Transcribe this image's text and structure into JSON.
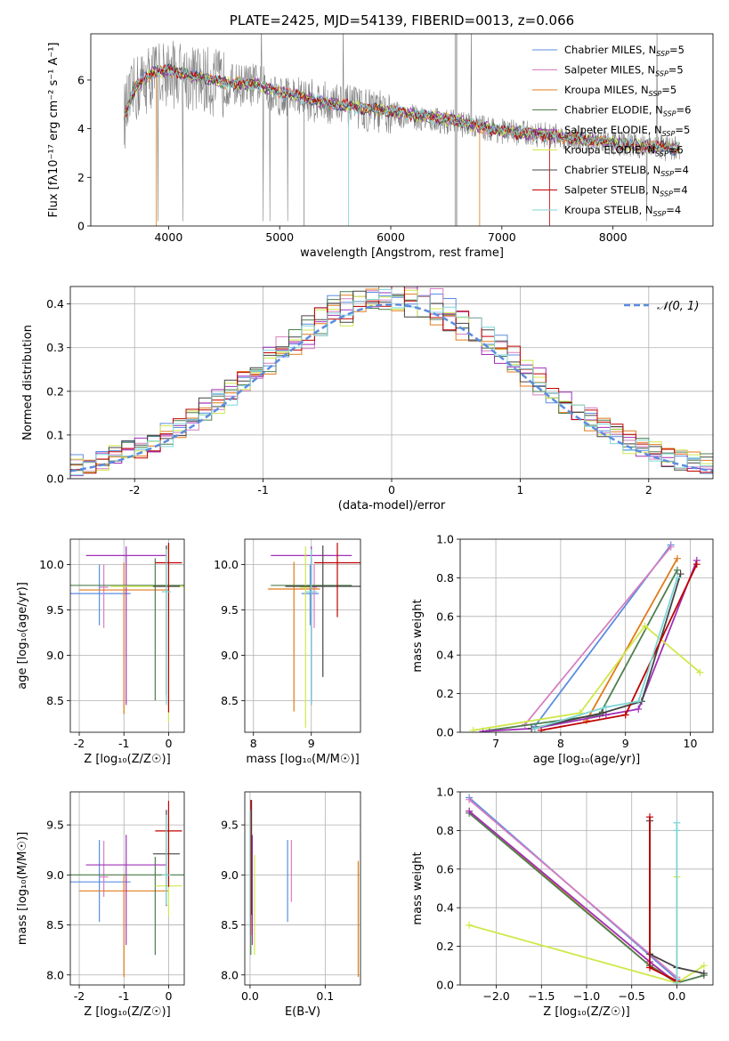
{
  "figure": {
    "width": 819,
    "height": 1170
  },
  "colors": {
    "Chabrier MILES": "#5b8de0",
    "Salpeter MILES": "#d67fbf",
    "Kroupa MILES": "#e07b1a",
    "Chabrier ELODIE": "#4f7f4f",
    "Salpeter ELODIE": "#a030b8",
    "Kroupa ELODIE": "#d0e84a",
    "Chabrier STELIB": "#444444",
    "Salpeter STELIB": "#c00000",
    "Kroupa STELIB": "#7fd6d6",
    "data": "#808080"
  },
  "chart_data": [
    {
      "id": "spectrum",
      "type": "line",
      "title": "PLATE=2425, MJD=54139, FIBERID=0013, z=0.066",
      "xlabel": "wavelength [Angstrom, rest frame]",
      "ylabel": "Flux [fλ10⁻¹⁷ erg cm⁻² s⁻¹ A⁻¹]",
      "xlim": [
        3300,
        8900
      ],
      "ylim": [
        0,
        7.9
      ],
      "xticks": [
        4000,
        5000,
        6000,
        7000,
        8000
      ],
      "yticks": [
        0,
        2,
        4,
        6
      ],
      "grid": false,
      "legend_position": "top-right",
      "legend": [
        "Chabrier MILES, N_SSP=5",
        "Salpeter MILES, N_SSP=5",
        "Kroupa MILES, N_SSP=5",
        "Chabrier ELODIE, N_SSP=6",
        "Salpeter ELODIE, N_SSP=5",
        "Kroupa ELODIE, N_SSP=6",
        "Chabrier STELIB, N_SSP=4",
        "Salpeter STELIB, N_SSP=4",
        "Kroupa STELIB, N_SSP=4"
      ],
      "model_continuum": {
        "x": [
          3600,
          3700,
          3850,
          4000,
          4200,
          4500,
          4800,
          5000,
          5500,
          6000,
          6500,
          7000,
          7500,
          8000,
          8500,
          8600
        ],
        "y": [
          4.5,
          5.7,
          6.3,
          6.4,
          6.2,
          5.9,
          5.8,
          5.5,
          5.0,
          4.7,
          4.4,
          3.9,
          3.7,
          3.4,
          3.2,
          3.2
        ]
      },
      "data_spectrum": {
        "x": [
          3600,
          3700,
          3850,
          4000,
          4200,
          4500,
          4800,
          5000,
          5500,
          6000,
          6500,
          7000,
          7500,
          8000,
          8500,
          8600
        ],
        "y": [
          4.5,
          5.6,
          6.2,
          6.3,
          6.1,
          5.8,
          5.8,
          5.4,
          5.0,
          4.6,
          4.3,
          3.9,
          3.7,
          3.4,
          3.2,
          3.2
        ],
        "noise": 0.9
      }
    },
    {
      "id": "residuals",
      "type": "line",
      "xlabel": "(data-model)/error",
      "ylabel": "Normed distribution",
      "xlim": [
        -2.5,
        2.5
      ],
      "ylim": [
        0,
        0.44
      ],
      "xticks": [
        -2,
        -1,
        0,
        1,
        2
      ],
      "yticks": [
        0.0,
        0.1,
        0.2,
        0.3,
        0.4
      ],
      "grid": true,
      "legend_position": "top-right",
      "legend": [
        "𝒩(0, 1)"
      ],
      "normal_curve": {
        "mu": 0,
        "sigma": 1
      }
    },
    {
      "id": "age-vs-Z",
      "type": "scatter",
      "xlabel": "Z [log₁₀(Z/Z☉)]",
      "ylabel": "age  [log₁₀(age/yr)]",
      "xlim": [
        -2.2,
        0.35
      ],
      "ylim": [
        8.15,
        10.28
      ],
      "xticks": [
        -2,
        -1,
        0
      ],
      "yticks": [
        8.5,
        9.0,
        9.5,
        10.0
      ],
      "grid": true,
      "points": [
        {
          "model": "Chabrier MILES",
          "x": -1.55,
          "y": 9.68,
          "xerr": 0.7,
          "yerr_lo": 0.35,
          "yerr_hi": 0.32
        },
        {
          "model": "Salpeter MILES",
          "x": -1.45,
          "y": 9.75,
          "xerr": 0.1,
          "yerr_lo": 0.45,
          "yerr_hi": 0.25
        },
        {
          "model": "Kroupa MILES",
          "x": -1.0,
          "y": 9.72,
          "xerr": 1.0,
          "yerr_lo": 1.37,
          "yerr_hi": 0.3
        },
        {
          "model": "Chabrier ELODIE",
          "x": -0.3,
          "y": 9.77,
          "xerr": 2.0,
          "yerr_lo": 1.27,
          "yerr_hi": 0.3
        },
        {
          "model": "Salpeter ELODIE",
          "x": -0.95,
          "y": 10.1,
          "xerr": 0.9,
          "yerr_lo": 1.65,
          "yerr_hi": 0.1
        },
        {
          "model": "Kroupa ELODIE",
          "x": 0.0,
          "y": 9.76,
          "xerr": 1.3,
          "yerr_lo": 1.5,
          "yerr_hi": 0.45
        },
        {
          "model": "Chabrier STELIB",
          "x": -0.05,
          "y": 9.76,
          "xerr": 0.3,
          "yerr_lo": 1.2,
          "yerr_hi": 0.45
        },
        {
          "model": "Salpeter STELIB",
          "x": 0.0,
          "y": 10.02,
          "xerr": 0.3,
          "yerr_lo": 1.65,
          "yerr_hi": 0.22
        },
        {
          "model": "Kroupa STELIB",
          "x": -0.05,
          "y": 9.7,
          "xerr": 0.1,
          "yerr_lo": 1.25,
          "yerr_hi": 0.47
        }
      ]
    },
    {
      "id": "age-vs-mass",
      "type": "scatter",
      "xlabel": "mass [log₁₀(M/M☉)]",
      "ylabel": "",
      "xlim": [
        7.85,
        9.85
      ],
      "ylim": [
        8.15,
        10.28
      ],
      "xticks": [
        8,
        9
      ],
      "yticks": [
        8.5,
        9.0,
        9.5,
        10.0
      ],
      "grid": true,
      "points": [
        {
          "model": "Chabrier MILES",
          "x": 8.98,
          "y": 9.68,
          "xerr": 0.15,
          "yerr_lo": 0.35,
          "yerr_hi": 0.32
        },
        {
          "model": "Salpeter MILES",
          "x": 9.05,
          "y": 9.75,
          "xerr": 0.05,
          "yerr_lo": 0.45,
          "yerr_hi": 0.25
        },
        {
          "model": "Kroupa MILES",
          "x": 8.7,
          "y": 9.73,
          "xerr": 0.45,
          "yerr_lo": 1.35,
          "yerr_hi": 0.3
        },
        {
          "model": "Chabrier ELODIE",
          "x": 9.0,
          "y": 9.77,
          "xerr": 0.7,
          "yerr_lo": 1.27,
          "yerr_hi": 0.3
        },
        {
          "model": "Salpeter ELODIE",
          "x": 9.0,
          "y": 10.1,
          "xerr": 0.7,
          "yerr_lo": 1.65,
          "yerr_hi": 0.1
        },
        {
          "model": "Kroupa ELODIE",
          "x": 8.9,
          "y": 9.75,
          "xerr": 0.1,
          "yerr_lo": 1.55,
          "yerr_hi": 0.45
        },
        {
          "model": "Chabrier STELIB",
          "x": 9.2,
          "y": 9.76,
          "xerr": 0.65,
          "yerr_lo": 1.0,
          "yerr_hi": 0.45
        },
        {
          "model": "Salpeter STELIB",
          "x": 9.45,
          "y": 10.02,
          "xerr": 0.4,
          "yerr_lo": 0.6,
          "yerr_hi": 0.22
        },
        {
          "model": "Kroupa STELIB",
          "x": 9.0,
          "y": 9.7,
          "xerr": 0.1,
          "yerr_lo": 1.25,
          "yerr_hi": 0.47
        }
      ]
    },
    {
      "id": "massweight-vs-age",
      "type": "line",
      "xlabel": "age  [log₁₀(age/yr)]",
      "ylabel": "mass weight",
      "xlim": [
        6.45,
        10.35
      ],
      "ylim": [
        0,
        1.0
      ],
      "xticks": [
        7,
        8,
        9,
        10
      ],
      "yticks": [
        0.0,
        0.2,
        0.4,
        0.6,
        0.8,
        1.0
      ],
      "grid": true,
      "series": [
        {
          "model": "Chabrier MILES",
          "x": [
            7.6,
            9.7
          ],
          "y": [
            0.03,
            0.97
          ]
        },
        {
          "model": "Salpeter MILES",
          "x": [
            7.45,
            9.7
          ],
          "y": [
            0.04,
            0.96
          ]
        },
        {
          "model": "Kroupa MILES",
          "x": [
            8.4,
            9.8
          ],
          "y": [
            0.06,
            0.9
          ]
        },
        {
          "model": "Chabrier ELODIE",
          "x": [
            6.9,
            8.6,
            9.8
          ],
          "y": [
            0.01,
            0.09,
            0.84
          ]
        },
        {
          "model": "Salpeter ELODIE",
          "x": [
            6.8,
            7.6,
            8.7,
            9.2,
            10.1
          ],
          "y": [
            0.005,
            0.02,
            0.09,
            0.12,
            0.89
          ]
        },
        {
          "model": "Kroupa ELODIE",
          "x": [
            6.65,
            8.3,
            9.3,
            10.15
          ],
          "y": [
            0.01,
            0.1,
            0.55,
            0.31
          ]
        },
        {
          "model": "Chabrier STELIB",
          "x": [
            7.55,
            8.65,
            9.25,
            9.85
          ],
          "y": [
            0.02,
            0.1,
            0.16,
            0.82
          ]
        },
        {
          "model": "Salpeter STELIB",
          "x": [
            7.7,
            9.0,
            10.1
          ],
          "y": [
            0.01,
            0.09,
            0.87
          ]
        },
        {
          "model": "Kroupa STELIB",
          "x": [
            7.6,
            8.7,
            9.2,
            9.8
          ],
          "y": [
            0.02,
            0.13,
            0.16,
            0.8
          ]
        }
      ]
    },
    {
      "id": "mass-vs-Z",
      "type": "scatter",
      "xlabel": "Z [log₁₀(Z/Z☉)]",
      "ylabel": "mass [log₁₀(M/M☉)]",
      "xlim": [
        -2.2,
        0.35
      ],
      "ylim": [
        7.9,
        9.83
      ],
      "xticks": [
        -2,
        -1,
        0
      ],
      "yticks": [
        8.0,
        8.5,
        9.0,
        9.5
      ],
      "grid": true,
      "points": [
        {
          "model": "Chabrier MILES",
          "x": -1.55,
          "y": 8.93,
          "xerr": 0.7,
          "yerr_lo": 0.4,
          "yerr_hi": 0.42
        },
        {
          "model": "Salpeter MILES",
          "x": -1.45,
          "y": 8.98,
          "xerr": 0.1,
          "yerr_lo": 0.2,
          "yerr_hi": 0.36
        },
        {
          "model": "Kroupa MILES",
          "x": -1.0,
          "y": 8.84,
          "xerr": 1.0,
          "yerr_lo": 0.86,
          "yerr_hi": 0.16
        },
        {
          "model": "Chabrier ELODIE",
          "x": -0.3,
          "y": 9.0,
          "xerr": 2.0,
          "yerr_lo": 0.8,
          "yerr_hi": 0.18
        },
        {
          "model": "Salpeter ELODIE",
          "x": -0.95,
          "y": 9.1,
          "xerr": 0.9,
          "yerr_lo": 0.8,
          "yerr_hi": 0.3
        },
        {
          "model": "Kroupa ELODIE",
          "x": 0.0,
          "y": 8.89,
          "xerr": 0.3,
          "yerr_lo": 0.3,
          "yerr_hi": 0.7
        },
        {
          "model": "Chabrier STELIB",
          "x": -0.05,
          "y": 9.21,
          "xerr": 0.3,
          "yerr_lo": 0.52,
          "yerr_hi": 0.44
        },
        {
          "model": "Salpeter STELIB",
          "x": 0.0,
          "y": 9.44,
          "xerr": 0.3,
          "yerr_lo": 0.56,
          "yerr_hi": 0.3
        },
        {
          "model": "Kroupa STELIB",
          "x": -0.05,
          "y": 9.0,
          "xerr": 0.1,
          "yerr_lo": 0.3,
          "yerr_hi": 0.6
        }
      ]
    },
    {
      "id": "mass-vs-ebv",
      "type": "scatter",
      "xlabel": "E(B-V)",
      "ylabel": "",
      "xlim": [
        -0.007,
        0.147
      ],
      "ylim": [
        7.9,
        9.83
      ],
      "xticks": [
        0.0,
        0.1
      ],
      "yticks": [
        8.0,
        8.5,
        9.0,
        9.5
      ],
      "grid": true,
      "points": [
        {
          "model": "Chabrier MILES",
          "x": 0.05,
          "y": 8.93,
          "yerr_lo": 0.4,
          "yerr_hi": 0.42
        },
        {
          "model": "Salpeter MILES",
          "x": 0.055,
          "y": 9.03,
          "yerr_lo": 0.3,
          "yerr_hi": 0.32
        },
        {
          "model": "Kroupa MILES",
          "x": 0.144,
          "y": 8.56,
          "yerr_lo": 0.58,
          "yerr_hi": 0.58
        },
        {
          "model": "Chabrier ELODIE",
          "x": 0.001,
          "y": 8.9,
          "yerr_lo": 0.7,
          "yerr_hi": 0.35
        },
        {
          "model": "Salpeter ELODIE",
          "x": 0.003,
          "y": 8.85,
          "yerr_lo": 0.55,
          "yerr_hi": 0.55
        },
        {
          "model": "Kroupa ELODIE",
          "x": 0.006,
          "y": 8.9,
          "yerr_lo": 0.7,
          "yerr_hi": 0.3
        },
        {
          "model": "Chabrier STELIB",
          "x": 0.002,
          "y": 9.2,
          "yerr_lo": 0.6,
          "yerr_hi": 0.55
        },
        {
          "model": "Salpeter STELIB",
          "x": 0.001,
          "y": 9.1,
          "yerr_lo": 0.7,
          "yerr_hi": 0.65
        },
        {
          "model": "Kroupa STELIB",
          "x": 0.0,
          "y": 9.05,
          "yerr_lo": 0.65,
          "yerr_hi": 0.6
        }
      ]
    },
    {
      "id": "massweight-vs-Z",
      "type": "line",
      "xlabel": "Z [log₁₀(Z/Z☉)]",
      "ylabel": "mass weight",
      "xlim": [
        -2.4,
        0.4
      ],
      "ylim": [
        0,
        1.0
      ],
      "xticks": [
        -2.0,
        -1.5,
        -1.0,
        -0.5,
        0.0
      ],
      "yticks": [
        0.0,
        0.2,
        0.4,
        0.6,
        0.8,
        1.0
      ],
      "grid": true,
      "series": [
        {
          "model": "Chabrier MILES",
          "x": [
            -2.3,
            0.0
          ],
          "y": [
            0.97,
            0.03
          ]
        },
        {
          "model": "Salpeter MILES",
          "x": [
            -2.3,
            0.0
          ],
          "y": [
            0.96,
            0.04
          ]
        },
        {
          "model": "Kroupa MILES",
          "x": [
            -2.3,
            -0.3,
            0.0
          ],
          "y": [
            0.9,
            0.1,
            0.02
          ]
        },
        {
          "model": "Chabrier ELODIE",
          "x": [
            -2.3,
            -0.3,
            0.0,
            0.3
          ],
          "y": [
            0.89,
            0.1,
            0.01,
            0.05
          ]
        },
        {
          "model": "Salpeter ELODIE",
          "x": [
            -2.3,
            -0.3,
            0.0
          ],
          "y": [
            0.9,
            0.12,
            0.01
          ]
        },
        {
          "model": "Kroupa ELODIE",
          "x": [
            -2.3,
            0.0,
            0.3,
            0.0,
            0.0
          ],
          "y": [
            0.31,
            0.01,
            0.1,
            0.01,
            0.56
          ]
        },
        {
          "model": "Chabrier STELIB",
          "x": [
            -0.3,
            -0.3,
            0.0,
            0.3
          ],
          "y": [
            0.85,
            0.16,
            0.09,
            0.06
          ]
        },
        {
          "model": "Salpeter STELIB",
          "x": [
            -0.3,
            -0.3,
            0.0
          ],
          "y": [
            0.87,
            0.09,
            0.02
          ]
        },
        {
          "model": "Kroupa STELIB",
          "x": [
            0.0,
            0.0,
            0.0
          ],
          "y": [
            0.84,
            0.8,
            0.01
          ]
        }
      ]
    }
  ]
}
